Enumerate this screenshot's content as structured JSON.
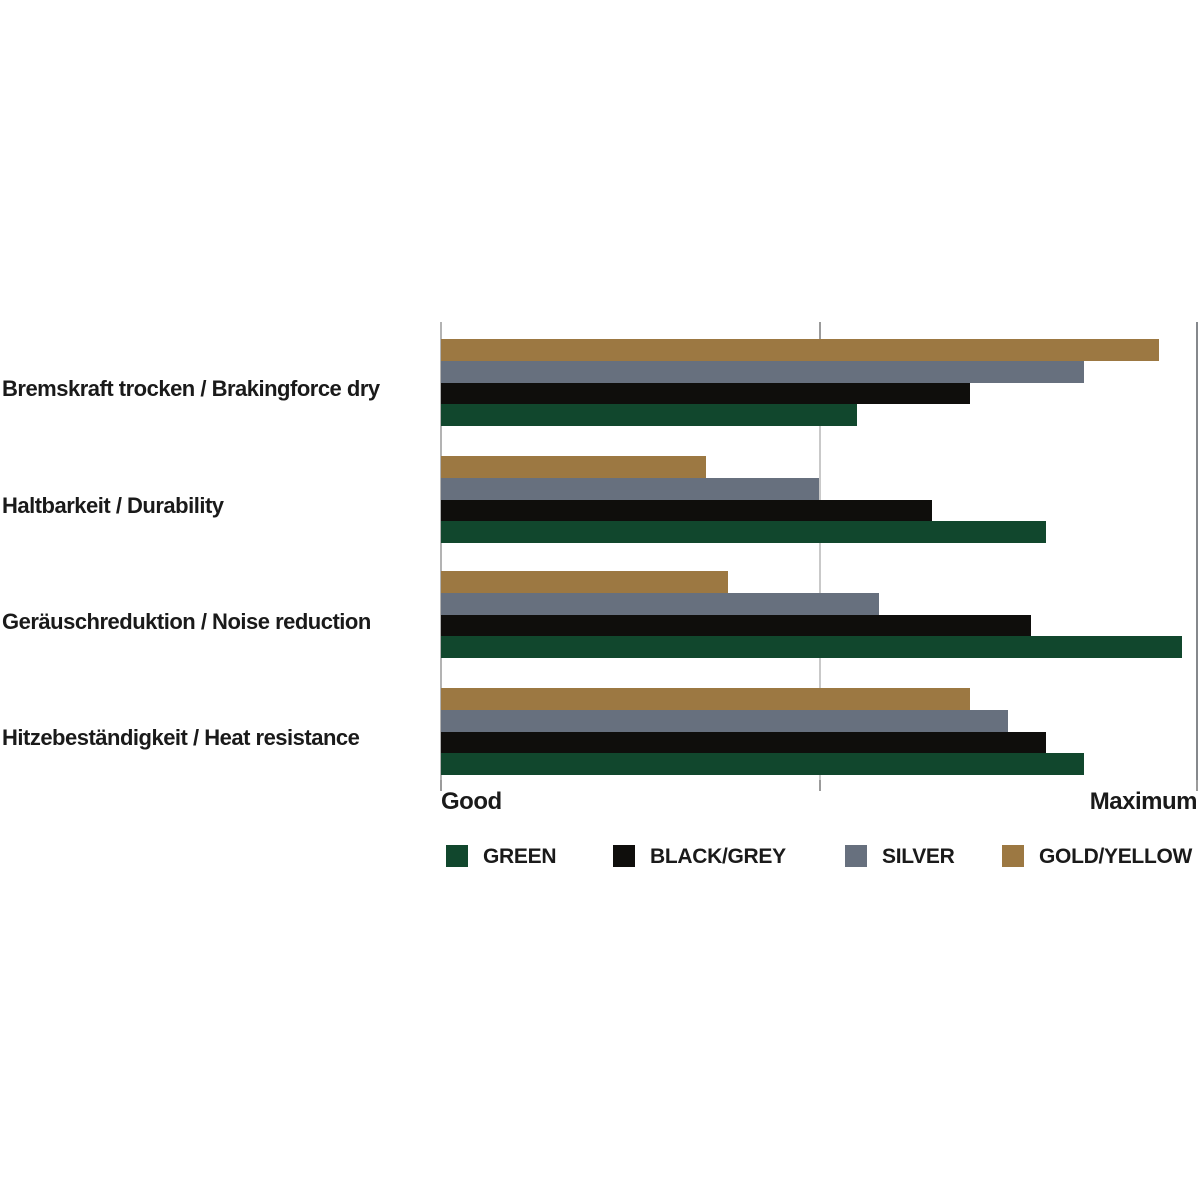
{
  "chart_data": {
    "type": "bar",
    "orientation": "horizontal",
    "title": "",
    "xlabel": "",
    "ylabel": "",
    "axis": {
      "min_label": "Good",
      "max_label": "Maximum",
      "xlim": [
        0,
        100
      ],
      "gridline_positions": [
        0,
        50,
        100
      ],
      "grid": true,
      "value_scale_note": "qualitative scale from Good to Maximum, values estimated 0-100"
    },
    "categories": [
      "Bremskraft trocken / Brakingforce dry",
      "Haltbarkeit / Durability",
      "Geräuschreduktion / Noise reduction",
      "Hitzebeständigkeit / Heat resistance"
    ],
    "series": [
      {
        "name": "GREEN",
        "color": "#11472d",
        "values": [
          55,
          80,
          98,
          85
        ]
      },
      {
        "name": "BLACK/GREY",
        "color": "#0f0e0c",
        "values": [
          70,
          65,
          78,
          80
        ]
      },
      {
        "name": "SILVER",
        "color": "#67707e",
        "values": [
          85,
          50,
          58,
          75
        ]
      },
      {
        "name": "GOLD/YELLOW",
        "color": "#9c7842",
        "values": [
          95,
          35,
          38,
          70
        ]
      }
    ],
    "bar_order_top_to_bottom": [
      "GOLD/YELLOW",
      "SILVER",
      "BLACK/GREY",
      "GREEN"
    ],
    "legend": {
      "position": "bottom",
      "entries": [
        "GREEN",
        "BLACK/GREY",
        "SILVER",
        "GOLD/YELLOW"
      ]
    },
    "colors": {
      "grid_light": "#c9c9c9",
      "axis_left": "#b3b3b3",
      "axis_right": "#85888c",
      "tick": "#9b9b9b",
      "text": "#1a1a1a",
      "background": "#ffffff"
    }
  }
}
